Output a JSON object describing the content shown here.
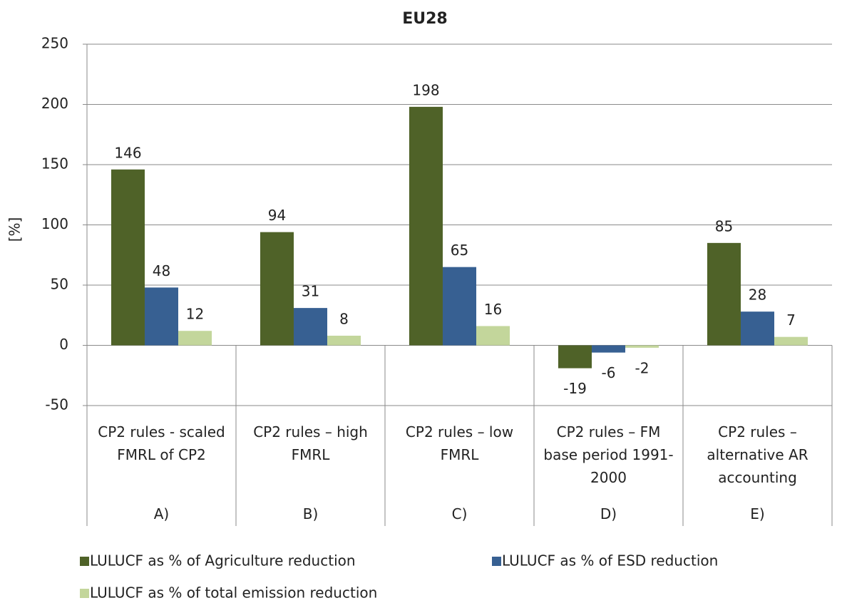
{
  "chart_data": {
    "type": "bar",
    "title": "EU28",
    "y_label": "[%]",
    "categories": [
      "CP2 rules - scaled FMRL of CP2",
      "CP2 rules – high FMRL",
      "CP2 rules – low FMRL",
      "CP2 rules – FM base period 1991-2000",
      "CP2 rules – alternative AR accounting"
    ],
    "groups": [
      "A)",
      "B)",
      "C)",
      "D)",
      "E)"
    ],
    "series": [
      {
        "name": "LULUCF as % of Agriculture reduction",
        "color": "#4f6228",
        "values": [
          146,
          94,
          198,
          -19,
          85
        ]
      },
      {
        "name": "LULUCF as % of ESD reduction",
        "color": "#376092",
        "values": [
          48,
          31,
          65,
          -6,
          28
        ]
      },
      {
        "name": "LULUCF as % of total emission reduction",
        "color": "#c3d69b",
        "values": [
          12,
          8,
          16,
          -2,
          7
        ]
      }
    ],
    "ylim": [
      -50,
      250
    ],
    "yticks": [
      -50,
      0,
      50,
      100,
      150,
      200,
      250
    ],
    "grid": true,
    "legend": "bottom"
  }
}
